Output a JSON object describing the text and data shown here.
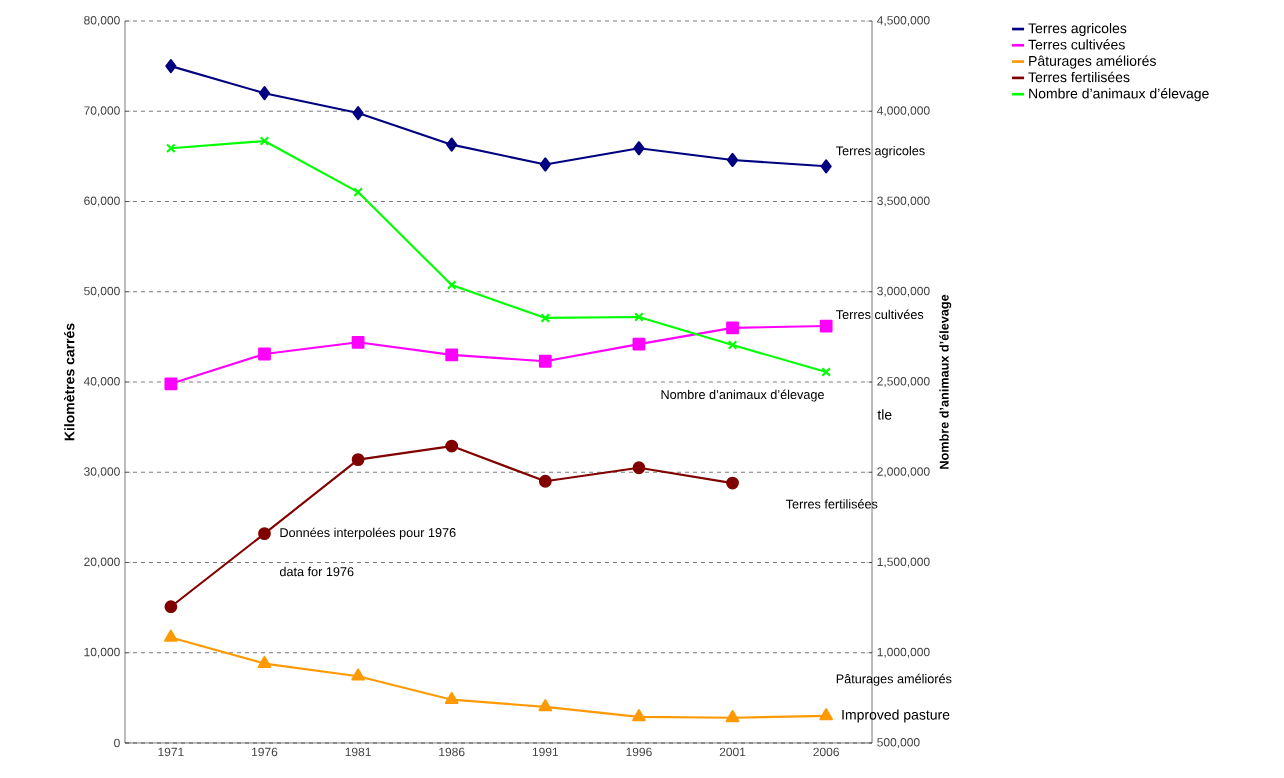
{
  "chart_data": {
    "type": "line",
    "ylabel": "Kilomètres carrés",
    "y2label": "Nombre d’animaux d’élevage",
    "categories": [
      "1971",
      "1976",
      "1981",
      "1986",
      "1991",
      "1996",
      "2001",
      "2006"
    ],
    "series": [
      {
        "name": "Terres agricoles",
        "color": "#000080",
        "marker": "diamond",
        "values": [
          75000,
          72000,
          69800,
          66300,
          64100,
          65900,
          64600,
          63900
        ]
      },
      {
        "name": "Terres cultivées",
        "color": "#ff00ff",
        "marker": "square",
        "values": [
          39800,
          43100,
          44400,
          43000,
          42300,
          44200,
          46000,
          46200
        ]
      },
      {
        "name": "Pâturages améliorés",
        "color": "#ff9900",
        "marker": "triangle",
        "values": [
          11700,
          8800,
          7400,
          4800,
          4000,
          2900,
          2800,
          3000
        ]
      },
      {
        "name": "Terres fertilisées",
        "color": "#800000",
        "marker": "circle",
        "values": [
          15100,
          23200,
          31400,
          32900,
          29000,
          30500,
          28800,
          null
        ]
      },
      {
        "name": "Nombre d’animaux d’élevage",
        "color": "#00ff00",
        "marker": "cross",
        "axis": "y2",
        "values": [
          3795000,
          3835000,
          3552000,
          3037000,
          2855000,
          2860000,
          2705000,
          2555000
        ]
      }
    ],
    "ylim": [
      0,
      80000
    ],
    "yticks": [
      0,
      {
        "value": 10000,
        "label": "10,000"
      },
      {
        "value": 20000,
        "label": "20,000"
      },
      {
        "value": 30000,
        "label": "30,000"
      },
      {
        "value": 40000,
        "label": "40,000"
      },
      {
        "value": 50000,
        "label": "50,000"
      },
      {
        "value": 60000,
        "label": "60,000"
      },
      {
        "value": 70000,
        "label": "70,000"
      },
      {
        "value": 80000,
        "label": "80,000"
      }
    ],
    "y2lim": [
      500000,
      4500000
    ],
    "y2ticks": [
      {
        "value": 500000,
        "label": "500,000"
      },
      {
        "value": 1000000,
        "label": "1,000,000"
      },
      {
        "value": 1500000,
        "label": "1,500,000"
      },
      {
        "value": 2000000,
        "label": "2,000,000"
      },
      {
        "value": 2500000,
        "label": "2,500,000"
      },
      {
        "value": 3000000,
        "label": "3,000,000"
      },
      {
        "value": 3500000,
        "label": "3,500,000"
      },
      {
        "value": 4000000,
        "label": "4,000,000"
      },
      {
        "value": 4500000,
        "label": "4,500,000"
      }
    ],
    "grid": "y",
    "legend": "top right",
    "line_style": "solid",
    "annotations": [
      "Terres agricoles",
      "Terres cultivées",
      "Nombre d’animaux d’élevage",
      "Terres fertilisées",
      "Pâturages améliorés",
      {
        "text": "Improved pasture",
        "x": "2006",
        "y": 3000
      },
      {
        "text": "Données interpolées pour 1976",
        "x": "1976",
        "y": 23200
      },
      "data for 1976",
      "tle"
    ]
  }
}
